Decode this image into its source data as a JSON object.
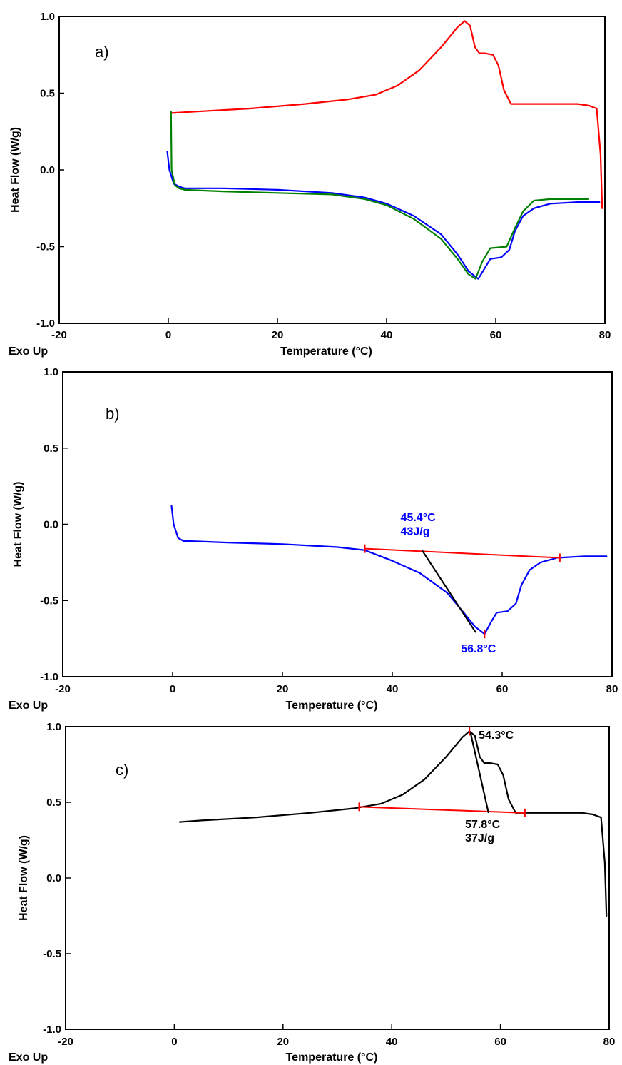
{
  "chart_data": [
    {
      "type": "line",
      "panel_label": "a)",
      "xlabel": "Temperature (°C)",
      "ylabel": "Heat Flow (W/g)",
      "corner_label": "Exo Up",
      "xlim": [
        -20,
        80
      ],
      "ylim": [
        -1.0,
        1.0
      ],
      "xticks": [
        "-20",
        "0",
        "20",
        "40",
        "60",
        "80"
      ],
      "yticks": [
        "-1.0",
        "-0.5",
        "0.0",
        "0.5",
        "1.0"
      ],
      "series": [
        {
          "color": "#ff0000",
          "x": [
            0.5,
            5,
            15,
            25,
            33,
            38,
            42,
            46,
            50,
            53,
            54.3,
            55.3,
            56.2,
            57,
            58,
            59.5,
            60.5,
            61.5,
            62.8,
            65,
            70,
            75,
            77,
            78.5,
            79.2,
            79.5
          ],
          "y": [
            0.37,
            0.38,
            0.4,
            0.43,
            0.46,
            0.49,
            0.55,
            0.65,
            0.8,
            0.93,
            0.97,
            0.94,
            0.8,
            0.76,
            0.76,
            0.75,
            0.68,
            0.52,
            0.43,
            0.43,
            0.43,
            0.43,
            0.42,
            0.4,
            0.1,
            -0.25
          ]
        },
        {
          "color": "#0000ff",
          "x": [
            -0.2,
            0.2,
            1,
            2,
            3,
            10,
            20,
            30,
            36,
            40,
            45,
            50,
            53,
            55,
            56.8,
            58,
            59,
            61,
            62.5,
            63.5,
            65,
            67,
            70,
            75,
            79
          ],
          "y": [
            0.12,
            0.0,
            -0.09,
            -0.11,
            -0.12,
            -0.12,
            -0.13,
            -0.15,
            -0.18,
            -0.22,
            -0.3,
            -0.42,
            -0.55,
            -0.66,
            -0.71,
            -0.64,
            -0.58,
            -0.57,
            -0.52,
            -0.4,
            -0.3,
            -0.25,
            -0.22,
            -0.21,
            -0.21
          ]
        },
        {
          "color": "#008000",
          "x": [
            0.5,
            0.6,
            1.2,
            2,
            3,
            10,
            20,
            30,
            36,
            40,
            45,
            50,
            53,
            55,
            56.3,
            57.5,
            59,
            62,
            63.5,
            65,
            67,
            70,
            77
          ],
          "y": [
            0.38,
            0.0,
            -0.1,
            -0.12,
            -0.13,
            -0.14,
            -0.15,
            -0.16,
            -0.19,
            -0.23,
            -0.32,
            -0.45,
            -0.58,
            -0.68,
            -0.71,
            -0.6,
            -0.51,
            -0.5,
            -0.38,
            -0.27,
            -0.2,
            -0.19,
            -0.19
          ]
        }
      ]
    },
    {
      "type": "line",
      "panel_label": "b)",
      "xlabel": "Temperature (°C)",
      "ylabel": "Heat Flow (W/g)",
      "corner_label": "Exo Up",
      "xlim": [
        -20,
        80
      ],
      "ylim": [
        -1.0,
        1.0
      ],
      "xticks": [
        "-20",
        "0",
        "20",
        "40",
        "60",
        "80"
      ],
      "yticks": [
        "-1.0",
        "-0.5",
        "0.0",
        "0.5",
        "1.0"
      ],
      "series": [
        {
          "color": "#0000ff",
          "x": [
            -0.2,
            0.2,
            1,
            2,
            3,
            10,
            20,
            30,
            35,
            40,
            45,
            50,
            53,
            55,
            56.8,
            58,
            59,
            61,
            62.5,
            63.5,
            65,
            67,
            70,
            75,
            79
          ],
          "y": [
            0.12,
            0.0,
            -0.09,
            -0.11,
            -0.11,
            -0.12,
            -0.13,
            -0.15,
            -0.17,
            -0.24,
            -0.32,
            -0.45,
            -0.58,
            -0.67,
            -0.72,
            -0.64,
            -0.58,
            -0.57,
            -0.52,
            -0.4,
            -0.3,
            -0.25,
            -0.22,
            -0.21,
            -0.21
          ]
        }
      ],
      "baseline": {
        "color": "#ff0000",
        "x1": 35,
        "y1": -0.16,
        "x2": 70.5,
        "y2": -0.22
      },
      "onset_line": {
        "color": "#000000",
        "x1": 45.4,
        "y1": -0.17,
        "x2": 55.2,
        "y2": -0.71
      },
      "markers_x": [
        35,
        70.5,
        56.8
      ],
      "annotations": [
        {
          "text": "45.4°C",
          "color": "#0000ff",
          "x": 41.5,
          "y": 0.02
        },
        {
          "text": "43J/g",
          "color": "#0000ff",
          "x": 41.5,
          "y": -0.07
        },
        {
          "text": "56.8°C",
          "color": "#0000ff",
          "x": 52.5,
          "y": -0.84
        }
      ]
    },
    {
      "type": "line",
      "panel_label": "c)",
      "xlabel": "Temperature (°C)",
      "ylabel": "Heat Flow (W/g)",
      "corner_label": "Exo Up",
      "xlim": [
        -20,
        80
      ],
      "ylim": [
        -1.0,
        1.0
      ],
      "xticks": [
        "-20",
        "0",
        "20",
        "40",
        "60",
        "80"
      ],
      "yticks": [
        "-1.0",
        "-0.5",
        "0.0",
        "0.5",
        "1.0"
      ],
      "series": [
        {
          "color": "#000000",
          "x": [
            1,
            5,
            15,
            25,
            33,
            38,
            42,
            46,
            50,
            53,
            54.3,
            55.3,
            56.2,
            57,
            58,
            59.5,
            60.5,
            61.5,
            62.8,
            65,
            70,
            75,
            77,
            78.5,
            79.2,
            79.5
          ],
          "y": [
            0.37,
            0.38,
            0.4,
            0.43,
            0.46,
            0.49,
            0.55,
            0.65,
            0.8,
            0.93,
            0.97,
            0.94,
            0.8,
            0.76,
            0.76,
            0.75,
            0.68,
            0.52,
            0.43,
            0.43,
            0.43,
            0.43,
            0.42,
            0.4,
            0.1,
            -0.25
          ]
        }
      ],
      "baseline": {
        "color": "#ff0000",
        "x1": 34,
        "y1": 0.47,
        "x2": 64.5,
        "y2": 0.43
      },
      "peak_line": {
        "color": "#000000",
        "x1": 54.5,
        "y1": 0.96,
        "x2": 57.8,
        "y2": 0.43
      },
      "markers_x": [
        34,
        64.5,
        54.3
      ],
      "annotations": [
        {
          "text": "54.3°C",
          "color": "#000000",
          "x": 56.0,
          "y": 0.92
        },
        {
          "text": "57.8°C",
          "color": "#000000",
          "x": 53.5,
          "y": 0.33
        },
        {
          "text": "37J/g",
          "color": "#000000",
          "x": 53.5,
          "y": 0.24
        }
      ]
    }
  ]
}
